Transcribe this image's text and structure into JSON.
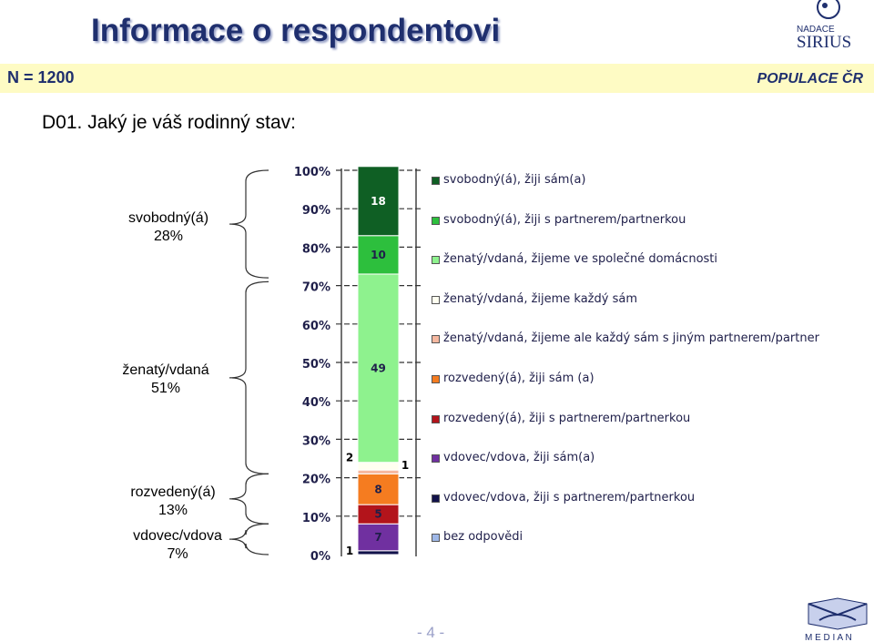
{
  "header": {
    "title": "Informace o respondentovi",
    "n_label": "N = 1200",
    "population_label": "POPULACE ČR",
    "question": "D01. Jaký je váš rodinný stav:",
    "sirius_logo_top": "NADACE",
    "sirius_logo_main": "SIRIUS"
  },
  "groups": [
    {
      "label": "svobodný(á)",
      "value": "28%"
    },
    {
      "label": "ženatý/vdaná",
      "value": "51%"
    },
    {
      "label": "rozvedený(á)",
      "value": "13%"
    },
    {
      "label": "vdovec/vdova",
      "value": "7%"
    }
  ],
  "chart_data": {
    "type": "bar",
    "stacked": true,
    "orientation": "vertical",
    "ylim": [
      0,
      100
    ],
    "yticks": [
      "0%",
      "10%",
      "20%",
      "30%",
      "40%",
      "50%",
      "60%",
      "70%",
      "80%",
      "90%",
      "100%"
    ],
    "grid": "dashed horizontal",
    "legend_position": "right",
    "series": [
      {
        "name": "bez odpovědi",
        "value": 0,
        "label": "",
        "color": "#9fb8e8"
      },
      {
        "name": "vdovec/vdova, žiji s partnerem/partnerkou",
        "value": 1,
        "label": "1",
        "color": "#12124a"
      },
      {
        "name": "vdovec/vdova, žiji sám(a)",
        "value": 7,
        "label": "7",
        "color": "#7030a0"
      },
      {
        "name": "rozvedený(á), žiji s partnerem/partnerkou",
        "value": 5,
        "label": "5",
        "color": "#b3141b"
      },
      {
        "name": "rozvedený(á), žiji sám (a)",
        "value": 8,
        "label": "8",
        "color": "#f57c20"
      },
      {
        "name": "ženatý/vdaná, žijeme ale každý sám s jiným partnerem/partner",
        "value": 1,
        "label": "1",
        "color": "#f6b8a0"
      },
      {
        "name": "ženatý/vdaná, žijeme každý sám",
        "value": 2,
        "label": "2",
        "color": "#fffff0"
      },
      {
        "name": "ženatý/vdaná, žijeme ve společné domácnosti",
        "value": 49,
        "label": "49",
        "color": "#8ef28e"
      },
      {
        "name": "svobodný(á), žiji s partnerem/partnerkou",
        "value": 10,
        "label": "10",
        "color": "#2dbf3d"
      },
      {
        "name": "svobodný(á), žiji sám(a)",
        "value": 18,
        "label": "18",
        "color": "#0f5f24"
      }
    ],
    "legend_order": [
      "svobodný(á), žiji sám(a)",
      "svobodný(á), žiji s partnerem/partnerkou",
      "ženatý/vdaná, žijeme ve společné domácnosti",
      "ženatý/vdaná, žijeme každý sám",
      "ženatý/vdaná, žijeme ale každý sám s jiným partnerem/partner",
      "rozvedený(á), žiji sám (a)",
      "rozvedený(á), žiji s partnerem/partnerkou",
      "vdovec/vdova, žiji sám(a)",
      "vdovec/vdova, žiji s partnerem/partnerkou",
      "bez odpovědi"
    ]
  },
  "footer": {
    "page_number": "- 4 -",
    "median_logo": "M E D I A N"
  }
}
